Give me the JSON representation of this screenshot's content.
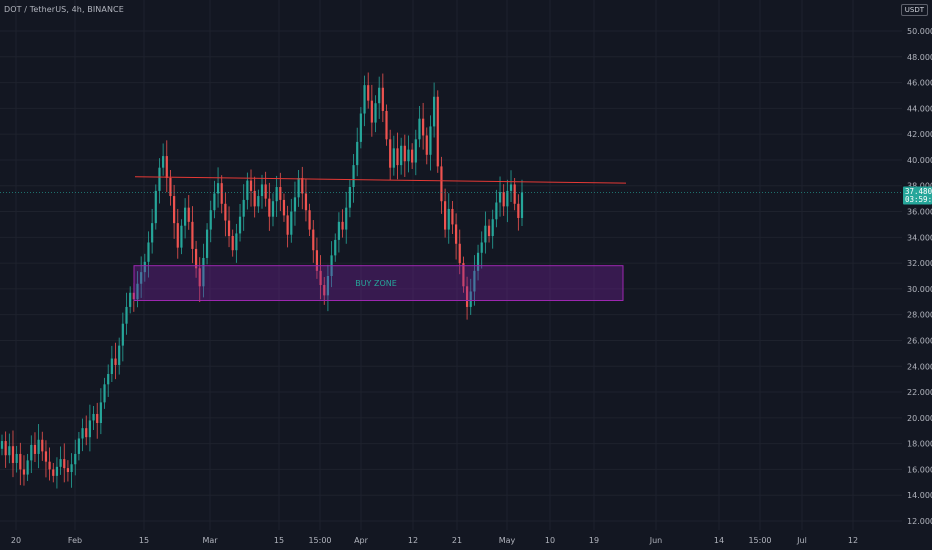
{
  "header": {
    "symbol_title": "DOT / TetherUS, 4h, BINANCE"
  },
  "axis": {
    "unit": "USDT"
  },
  "colors": {
    "background": "#131722",
    "grid": "#1e222d",
    "up": "#26a69a",
    "down": "#ef5350",
    "resistance": "#e53935",
    "zone_fill": "#7b1fa2",
    "current_price_line": "#26a69a"
  },
  "price_tag": {
    "price": "37.480",
    "countdown": "03:59:33"
  },
  "chart_data": {
    "type": "candlestick",
    "title": "DOT / TetherUS, 4h, BINANCE",
    "ylim": [
      11,
      52
    ],
    "y_ticks": [
      "12.000",
      "14.000",
      "16.000",
      "18.000",
      "20.000",
      "22.000",
      "24.000",
      "26.000",
      "28.000",
      "30.000",
      "32.000",
      "34.000",
      "36.000",
      "38.000",
      "40.000",
      "42.000",
      "44.000",
      "46.000",
      "48.000",
      "50.000"
    ],
    "x_ticks": [
      "20",
      "Feb",
      "15",
      "Mar",
      "15",
      "15:00",
      "Apr",
      "12",
      "21",
      "May",
      "10",
      "19",
      "Jun",
      "14",
      "15:00",
      "Jul",
      "12"
    ],
    "annotations": [
      {
        "kind": "resistance-line",
        "from_price": 38.7,
        "to_price": 38.2
      },
      {
        "kind": "zone",
        "label": "BUY ZONE",
        "low": 29.1,
        "high": 31.8
      }
    ],
    "series": [
      {
        "values": [
          [
            17.6,
            18.2
          ],
          [
            18.2,
            17.1
          ],
          [
            17.1,
            17.8
          ],
          [
            17.8,
            16.5
          ],
          [
            16.5,
            17.2
          ],
          [
            17.2,
            16.0
          ],
          [
            16.0,
            15.6
          ],
          [
            15.6,
            16.7
          ],
          [
            16.7,
            17.9
          ],
          [
            17.9,
            17.2
          ],
          [
            17.2,
            18.3
          ],
          [
            18.3,
            17.4
          ],
          [
            17.4,
            16.6
          ],
          [
            16.6,
            16.0
          ],
          [
            16.0,
            15.5
          ],
          [
            15.5,
            16.2
          ],
          [
            16.2,
            16.8
          ],
          [
            16.8,
            16.1
          ],
          [
            16.1,
            15.8
          ],
          [
            15.8,
            16.4
          ],
          [
            16.4,
            17.2
          ],
          [
            17.2,
            18.4
          ],
          [
            18.4,
            19.2
          ],
          [
            19.2,
            18.5
          ],
          [
            18.5,
            19.8
          ],
          [
            19.8,
            20.3
          ],
          [
            20.3,
            19.6
          ],
          [
            19.6,
            21.2
          ],
          [
            21.2,
            22.6
          ],
          [
            22.6,
            23.4
          ],
          [
            23.4,
            24.6
          ],
          [
            24.6,
            24.1
          ],
          [
            24.1,
            25.6
          ],
          [
            25.6,
            27.3
          ],
          [
            27.3,
            28.6
          ],
          [
            28.6,
            29.7
          ],
          [
            29.7,
            29.2
          ],
          [
            29.2,
            30.4
          ],
          [
            30.4,
            31.3
          ],
          [
            31.3,
            32.1
          ],
          [
            32.1,
            33.6
          ],
          [
            33.6,
            35.1
          ],
          [
            35.1,
            37.6
          ],
          [
            37.6,
            39.4
          ],
          [
            39.4,
            40.3
          ],
          [
            40.3,
            38.6
          ],
          [
            38.6,
            37.2
          ],
          [
            37.2,
            35.1
          ],
          [
            35.1,
            33.2
          ],
          [
            33.2,
            34.9
          ],
          [
            34.9,
            36.3
          ],
          [
            36.3,
            35.2
          ],
          [
            35.2,
            33.1
          ],
          [
            33.1,
            31.6
          ],
          [
            31.6,
            30.2
          ],
          [
            30.2,
            32.4
          ],
          [
            32.4,
            34.6
          ],
          [
            34.6,
            36.1
          ],
          [
            36.1,
            37.4
          ],
          [
            37.4,
            38.2
          ],
          [
            38.2,
            36.6
          ],
          [
            36.6,
            35.3
          ],
          [
            35.3,
            34.1
          ],
          [
            34.1,
            33.0
          ],
          [
            33.0,
            34.3
          ],
          [
            34.3,
            35.6
          ],
          [
            35.6,
            36.9
          ],
          [
            36.9,
            38.4
          ],
          [
            38.4,
            37.6
          ],
          [
            37.6,
            36.4
          ],
          [
            36.4,
            37.2
          ],
          [
            37.2,
            38.1
          ],
          [
            38.1,
            37.0
          ],
          [
            37.0,
            35.6
          ],
          [
            35.6,
            36.8
          ],
          [
            36.8,
            37.9
          ],
          [
            37.9,
            36.9
          ],
          [
            36.9,
            35.7
          ],
          [
            35.7,
            34.2
          ],
          [
            34.2,
            36.0
          ],
          [
            36.0,
            37.1
          ],
          [
            37.1,
            38.6
          ],
          [
            38.6,
            37.4
          ],
          [
            37.4,
            36.1
          ],
          [
            36.1,
            34.6
          ],
          [
            34.6,
            33.0
          ],
          [
            33.0,
            31.4
          ],
          [
            31.4,
            30.3
          ],
          [
            30.3,
            29.5
          ],
          [
            29.5,
            31.0
          ],
          [
            31.0,
            32.6
          ],
          [
            32.6,
            33.8
          ],
          [
            33.8,
            35.2
          ],
          [
            35.2,
            34.6
          ],
          [
            34.6,
            36.3
          ],
          [
            36.3,
            37.9
          ],
          [
            37.9,
            39.6
          ],
          [
            39.6,
            41.4
          ],
          [
            41.4,
            43.6
          ],
          [
            43.6,
            45.8
          ],
          [
            45.8,
            44.6
          ],
          [
            44.6,
            42.9
          ],
          [
            42.9,
            44.4
          ],
          [
            44.4,
            45.6
          ],
          [
            45.6,
            43.8
          ],
          [
            43.8,
            41.6
          ],
          [
            41.6,
            39.4
          ],
          [
            39.4,
            40.9
          ],
          [
            40.9,
            39.6
          ],
          [
            39.6,
            41.1
          ],
          [
            41.1,
            39.9
          ],
          [
            39.9,
            40.8
          ],
          [
            40.8,
            39.8
          ],
          [
            39.8,
            41.6
          ],
          [
            41.6,
            43.2
          ],
          [
            43.2,
            41.9
          ],
          [
            41.9,
            40.4
          ],
          [
            40.4,
            42.6
          ],
          [
            42.6,
            44.9
          ],
          [
            44.9,
            39.5
          ],
          [
            39.5,
            36.8
          ],
          [
            36.8,
            34.6
          ],
          [
            34.6,
            36.2
          ],
          [
            36.2,
            35.0
          ],
          [
            35.0,
            33.5
          ],
          [
            33.5,
            32.0
          ],
          [
            32.0,
            30.2
          ],
          [
            30.2,
            28.6
          ],
          [
            28.6,
            29.8
          ],
          [
            29.8,
            31.4
          ],
          [
            31.4,
            32.8
          ],
          [
            32.8,
            33.6
          ],
          [
            33.6,
            34.9
          ],
          [
            34.9,
            34.1
          ],
          [
            34.1,
            35.4
          ],
          [
            35.4,
            36.7
          ],
          [
            36.7,
            37.5
          ],
          [
            37.5,
            36.4
          ],
          [
            36.4,
            37.6
          ],
          [
            37.6,
            38.1
          ],
          [
            38.1,
            36.6
          ],
          [
            36.6,
            35.5
          ],
          [
            35.5,
            37.48
          ]
        ]
      }
    ]
  }
}
